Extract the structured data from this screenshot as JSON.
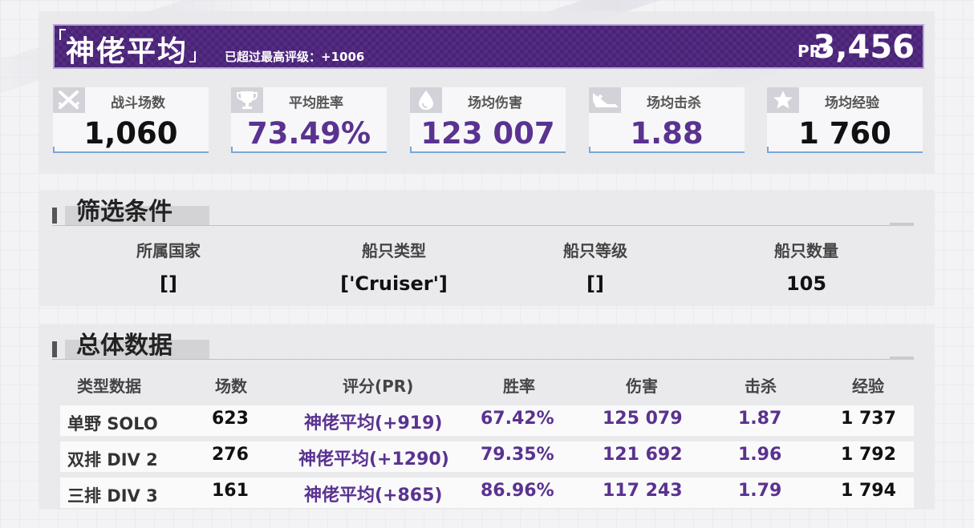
{
  "header": {
    "title": "神佬平均",
    "subtitle": "已超过最高评级：+1006",
    "pr_label": "PR:",
    "pr_value": "3,456"
  },
  "stats": [
    {
      "label": "战斗场数",
      "value": "1,060",
      "icon": "crossed-swords-icon",
      "color": "black"
    },
    {
      "label": "平均胜率",
      "value": "73.49%",
      "icon": "trophy-icon",
      "color": "purple"
    },
    {
      "label": "场均伤害",
      "value": "123 007",
      "icon": "droplet-icon",
      "color": "purple"
    },
    {
      "label": "场均击杀",
      "value": "1.88",
      "icon": "sinking-ship-icon",
      "color": "purple"
    },
    {
      "label": "场均经验",
      "value": "1 760",
      "icon": "star-icon",
      "color": "black"
    }
  ],
  "filter": {
    "title": "筛选条件",
    "columns": [
      {
        "label": "所属国家",
        "value": "[]"
      },
      {
        "label": "船只类型",
        "value": "['Cruiser']"
      },
      {
        "label": "船只等级",
        "value": "[]"
      },
      {
        "label": "船只数量",
        "value": "105"
      }
    ]
  },
  "overall": {
    "title": "总体数据",
    "headers": [
      "类型数据",
      "场数",
      "评分(PR)",
      "胜率",
      "伤害",
      "击杀",
      "经验"
    ],
    "rows": [
      {
        "type": "单野 SOLO",
        "battles": "623",
        "rating": "神佬平均(+919)",
        "winrate": "67.42%",
        "damage": "125 079",
        "kills": "1.87",
        "exp": "1 737"
      },
      {
        "type": "双排 DIV 2",
        "battles": "276",
        "rating": "神佬平均(+1290)",
        "winrate": "79.35%",
        "damage": "121 692",
        "kills": "1.96",
        "exp": "1 792"
      },
      {
        "type": "三排 DIV 3",
        "battles": "161",
        "rating": "神佬平均(+865)",
        "winrate": "86.96%",
        "damage": "117 243",
        "kills": "1.79",
        "exp": "1 794"
      }
    ]
  },
  "colors": {
    "accent": "#4a2278",
    "value_purple": "#5a3290",
    "card_border": "#7aa6d8"
  }
}
